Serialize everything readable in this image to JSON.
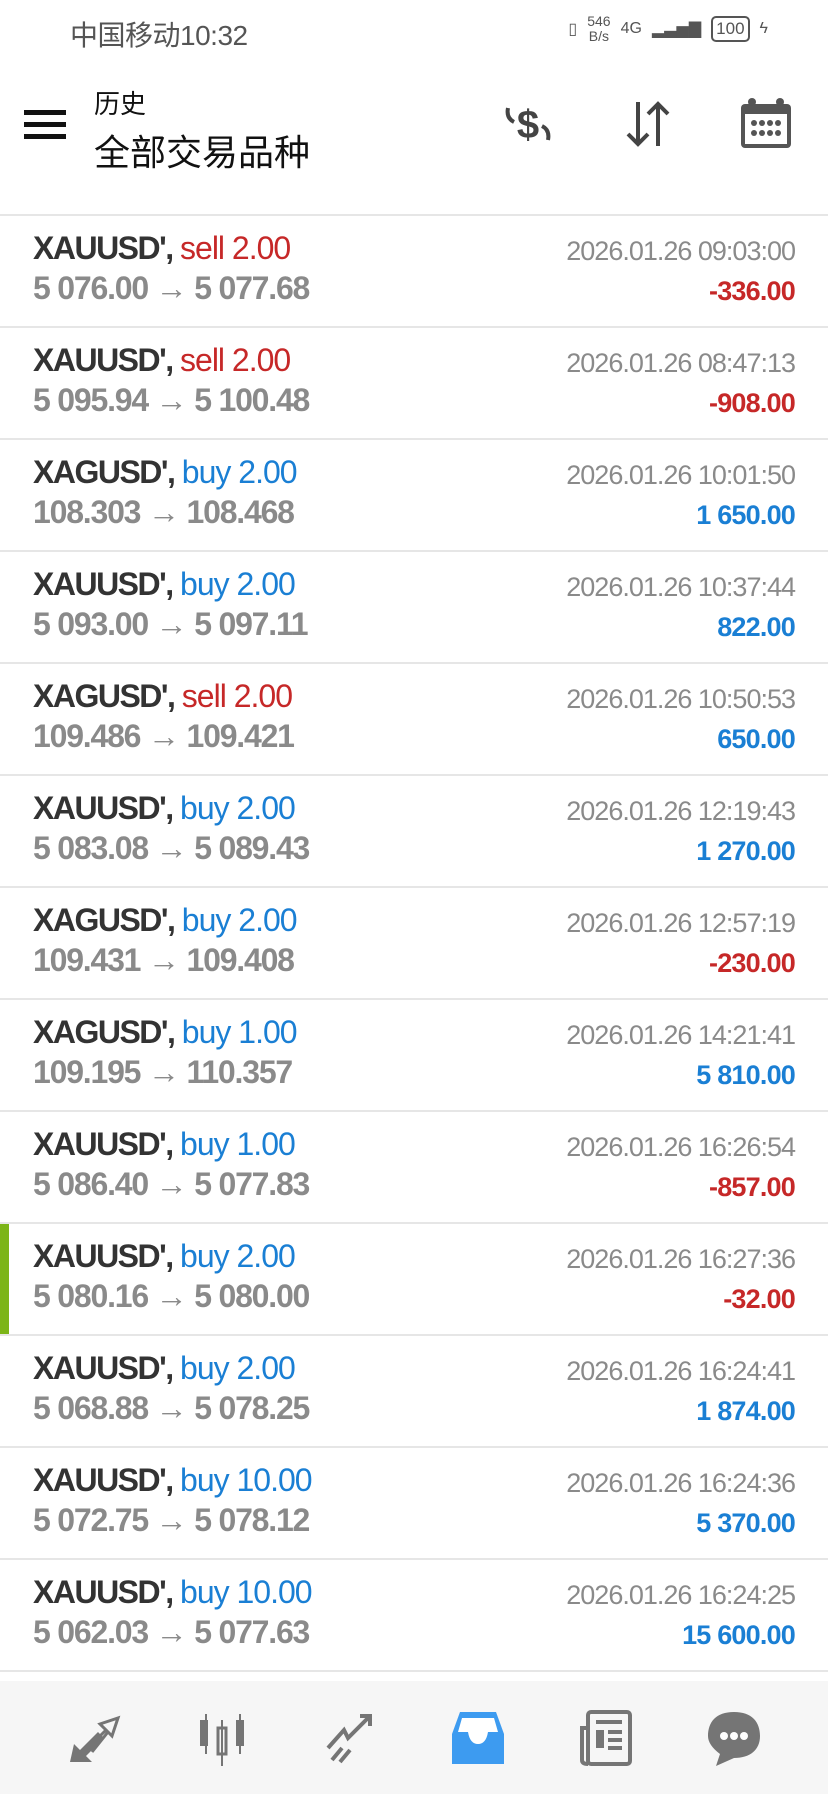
{
  "status_bar": {
    "carrier": "中国移动",
    "time": "10:32",
    "net_speed_value": "546",
    "net_speed_unit": "B/s",
    "network": "4G",
    "battery": "100"
  },
  "header": {
    "subtitle": "历史",
    "title": "全部交易品种",
    "icons": [
      "menu-icon",
      "currency-exchange-icon",
      "sort-icon",
      "calendar-icon"
    ]
  },
  "colors": {
    "sell": "#c62828",
    "buy": "#1a7fd4",
    "loss": "#c62828",
    "profit": "#1a7fd4",
    "highlight": "#7cb518",
    "nav_active": "#3d9bf0",
    "nav_inactive": "#757575"
  },
  "trades": [
    {
      "symbol": "XAUUSD'",
      "side": "sell",
      "volume": "2.00",
      "open": "5 076.00",
      "close": "5 077.68",
      "time": "2026.01.26 09:03:00",
      "profit": "-336.00"
    },
    {
      "symbol": "XAUUSD'",
      "side": "sell",
      "volume": "2.00",
      "open": "5 095.94",
      "close": "5 100.48",
      "time": "2026.01.26 08:47:13",
      "profit": "-908.00"
    },
    {
      "symbol": "XAGUSD'",
      "side": "buy",
      "volume": "2.00",
      "open": "108.303",
      "close": "108.468",
      "time": "2026.01.26 10:01:50",
      "profit": "1 650.00"
    },
    {
      "symbol": "XAUUSD'",
      "side": "buy",
      "volume": "2.00",
      "open": "5 093.00",
      "close": "5 097.11",
      "time": "2026.01.26 10:37:44",
      "profit": "822.00"
    },
    {
      "symbol": "XAGUSD'",
      "side": "sell",
      "volume": "2.00",
      "open": "109.486",
      "close": "109.421",
      "time": "2026.01.26 10:50:53",
      "profit": "650.00"
    },
    {
      "symbol": "XAUUSD'",
      "side": "buy",
      "volume": "2.00",
      "open": "5 083.08",
      "close": "5 089.43",
      "time": "2026.01.26 12:19:43",
      "profit": "1 270.00"
    },
    {
      "symbol": "XAGUSD'",
      "side": "buy",
      "volume": "2.00",
      "open": "109.431",
      "close": "109.408",
      "time": "2026.01.26 12:57:19",
      "profit": "-230.00"
    },
    {
      "symbol": "XAGUSD'",
      "side": "buy",
      "volume": "1.00",
      "open": "109.195",
      "close": "110.357",
      "time": "2026.01.26 14:21:41",
      "profit": "5 810.00"
    },
    {
      "symbol": "XAUUSD'",
      "side": "buy",
      "volume": "1.00",
      "open": "5 086.40",
      "close": "5 077.83",
      "time": "2026.01.26 16:26:54",
      "profit": "-857.00"
    },
    {
      "symbol": "XAUUSD'",
      "side": "buy",
      "volume": "2.00",
      "open": "5 080.16",
      "close": "5 080.00",
      "time": "2026.01.26 16:27:36",
      "profit": "-32.00",
      "highlighted": true
    },
    {
      "symbol": "XAUUSD'",
      "side": "buy",
      "volume": "2.00",
      "open": "5 068.88",
      "close": "5 078.25",
      "time": "2026.01.26 16:24:41",
      "profit": "1 874.00"
    },
    {
      "symbol": "XAUUSD'",
      "side": "buy",
      "volume": "10.00",
      "open": "5 072.75",
      "close": "5 078.12",
      "time": "2026.01.26 16:24:36",
      "profit": "5 370.00"
    },
    {
      "symbol": "XAUUSD'",
      "side": "buy",
      "volume": "10.00",
      "open": "5 062.03",
      "close": "5 077.63",
      "time": "2026.01.26 16:24:25",
      "profit": "15 600.00"
    }
  ],
  "arrow": "→",
  "bottom_nav": {
    "active": "history",
    "items": [
      "quotes-icon",
      "chart-icon",
      "trade-icon",
      "history-icon",
      "news-icon",
      "chat-icon"
    ]
  }
}
